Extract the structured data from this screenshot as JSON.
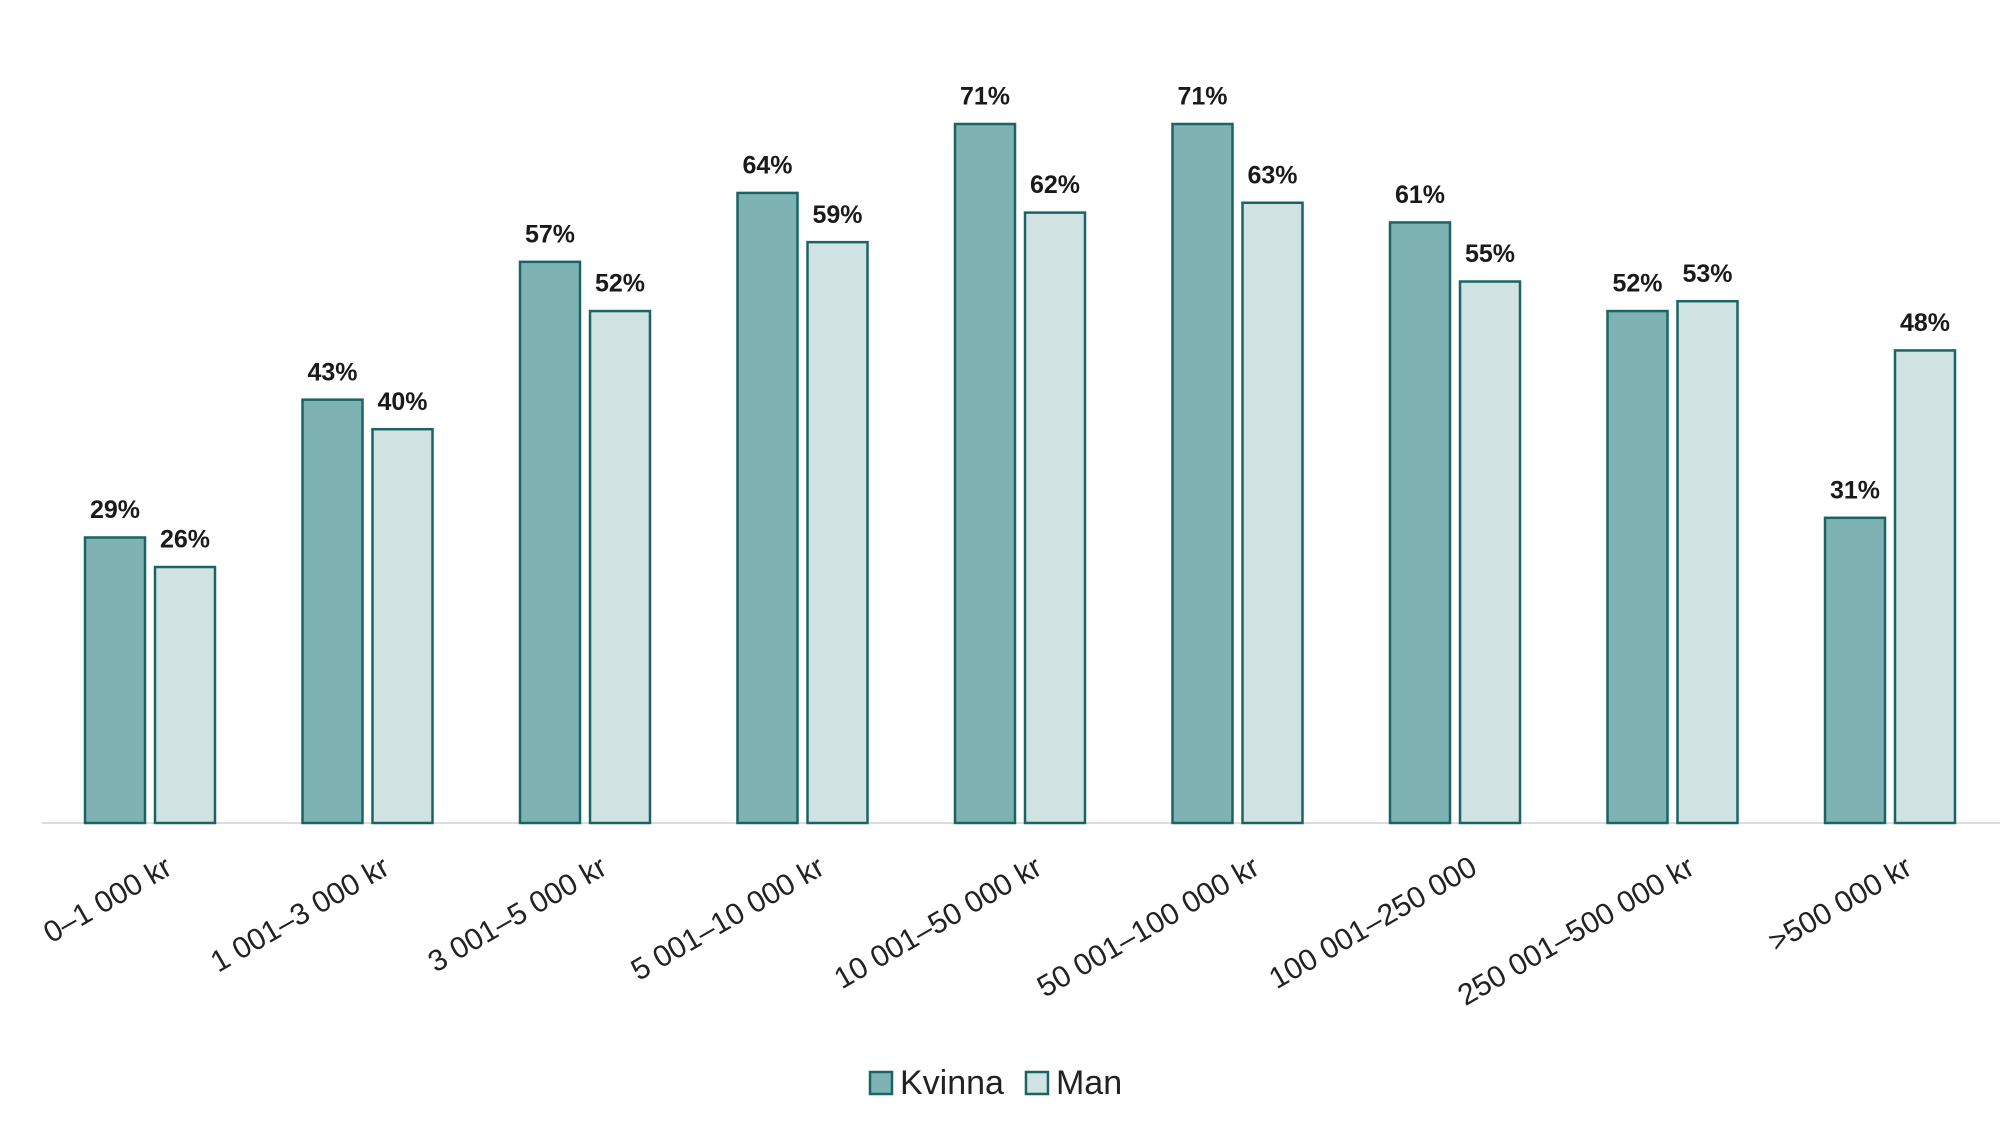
{
  "chart_data": {
    "type": "bar",
    "categories": [
      "0–1 000 kr",
      "1 001–3 000 kr",
      "3 001–5 000 kr",
      "5 001–10 000 kr",
      "10 001–50 000 kr",
      "50 001–100 000 kr",
      "100 001–250 000",
      "250 001–500 000 kr",
      ">500 000 kr"
    ],
    "series": [
      {
        "name": "Kvinna",
        "color": "#7fb3b3",
        "values": [
          29,
          43,
          57,
          64,
          71,
          71,
          61,
          52,
          31
        ],
        "value_labels": [
          "29%",
          "43%",
          "57%",
          "64%",
          "71%",
          "71%",
          "61%",
          "52%",
          "31%"
        ]
      },
      {
        "name": "Man",
        "color": "#d0e2e2",
        "values": [
          26,
          40,
          52,
          59,
          62,
          63,
          55,
          53,
          48
        ],
        "value_labels": [
          "26%",
          "40%",
          "52%",
          "59%",
          "62%",
          "63%",
          "55%",
          "53%",
          "48%"
        ]
      }
    ],
    "legend": "bottom"
  }
}
